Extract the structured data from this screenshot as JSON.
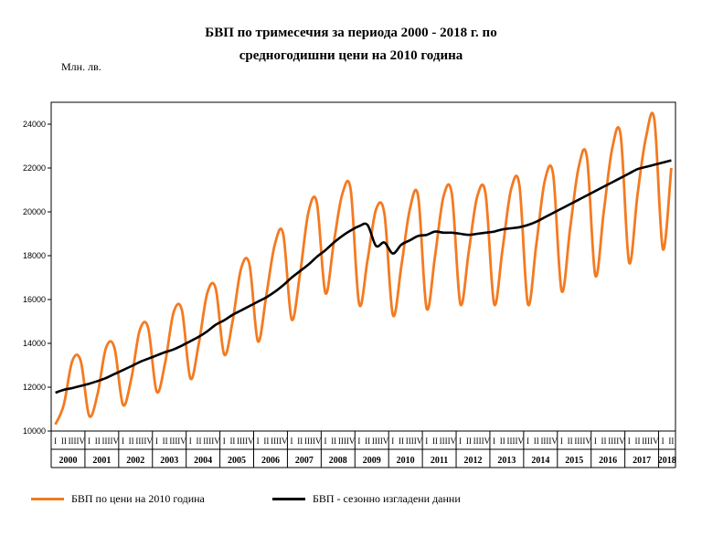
{
  "chart_data": {
    "type": "line",
    "title_line1": "БВП по тримесечия за периода 2000 - 2018 г. по",
    "title_line2": "средногодишни цени на 2010 година",
    "ylabel": "Млн. лв.",
    "ylim": [
      10000,
      25000
    ],
    "yticks": [
      10000,
      12000,
      14000,
      16000,
      18000,
      20000,
      22000,
      24000
    ],
    "quarter_labels": [
      "I",
      "II",
      "III",
      "IV"
    ],
    "years": [
      "2000",
      "2001",
      "2002",
      "2003",
      "2004",
      "2005",
      "2006",
      "2007",
      "2008",
      "2009",
      "2010",
      "2011",
      "2012",
      "2013",
      "2014",
      "2015",
      "2016",
      "2017",
      "2018"
    ],
    "series": [
      {
        "name": "БВП по цени на 2010  година",
        "color": "#f47a20",
        "values": [
          10300,
          11200,
          13200,
          13200,
          10700,
          11700,
          13800,
          13800,
          11200,
          12400,
          14600,
          14700,
          11800,
          13100,
          15400,
          15500,
          12400,
          14000,
          16300,
          16500,
          13500,
          15000,
          17400,
          17600,
          14100,
          16200,
          18500,
          19000,
          15100,
          17200,
          20000,
          20400,
          16300,
          18600,
          20800,
          21000,
          15800,
          17800,
          20100,
          19900,
          15300,
          17500,
          20100,
          20700,
          15600,
          18000,
          20700,
          20800,
          15800,
          18200,
          20700,
          20800,
          15800,
          18300,
          21000,
          21200,
          15800,
          18500,
          21400,
          21700,
          16400,
          19200,
          22000,
          22500,
          17100,
          20000,
          22900,
          23500,
          17700,
          20800,
          23400,
          24200,
          18300,
          22000
        ]
      },
      {
        "name": "БВП - сезонно изгладени данни",
        "color": "#000000",
        "values": [
          11750,
          11880,
          11960,
          12060,
          12160,
          12280,
          12420,
          12600,
          12780,
          12960,
          13150,
          13300,
          13450,
          13600,
          13720,
          13900,
          14100,
          14300,
          14550,
          14850,
          15050,
          15300,
          15500,
          15700,
          15900,
          16100,
          16350,
          16650,
          17000,
          17300,
          17600,
          17950,
          18250,
          18600,
          18900,
          19150,
          19350,
          19400,
          18450,
          18600,
          18100,
          18500,
          18700,
          18900,
          18950,
          19100,
          19050,
          19050,
          19000,
          18950,
          19000,
          19050,
          19100,
          19200,
          19250,
          19300,
          19400,
          19550,
          19750,
          19950,
          20150,
          20350,
          20550,
          20750,
          20950,
          21150,
          21350,
          21550,
          21750,
          21950,
          22050,
          22150,
          22250,
          22350
        ]
      }
    ]
  }
}
